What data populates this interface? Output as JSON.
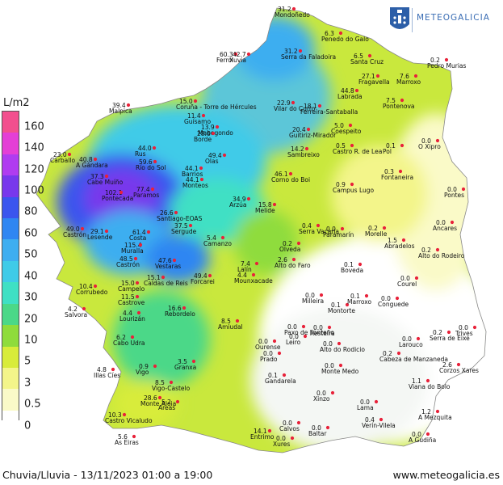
{
  "logo": {
    "text": "METEOGALICIA"
  },
  "legend": {
    "unit": "L/m2",
    "stops": [
      {
        "label": "160",
        "color": "#f24f8e"
      },
      {
        "label": "140",
        "color": "#e43fd6"
      },
      {
        "label": "120",
        "color": "#b03cf0"
      },
      {
        "label": "100",
        "color": "#7838ec"
      },
      {
        "label": "80",
        "color": "#3b55ee"
      },
      {
        "label": "60",
        "color": "#2f86f2"
      },
      {
        "label": "50",
        "color": "#3eaef0"
      },
      {
        "label": "40",
        "color": "#3fcbe8"
      },
      {
        "label": "30",
        "color": "#3fe0c4"
      },
      {
        "label": "20",
        "color": "#4bd888"
      },
      {
        "label": "10",
        "color": "#8fdc3c"
      },
      {
        "label": "5",
        "color": "#d8ec3a"
      },
      {
        "label": "3",
        "color": "#f3f58a"
      },
      {
        "label": "0.5",
        "color": "#fafac8"
      },
      {
        "label": "0",
        "color": "#ffffff"
      }
    ]
  },
  "footer": {
    "caption": "Chuvia/Lluvia - 13/11/2023 01:00 a 19:00",
    "website": "www.meteogalicia.es"
  },
  "stations": [
    {
      "name": "Mondoñedo",
      "value": "31.2"
    },
    {
      "name": "Serra da Faladoira",
      "value": "31.2"
    },
    {
      "name": "Pedro Murias",
      "value": "0.2"
    },
    {
      "name": "Santa Cruz",
      "value": "6.5"
    },
    {
      "name": "Fragavella",
      "value": "27.1"
    },
    {
      "name": "Marroxo",
      "value": "7.6"
    },
    {
      "name": "Labrada",
      "value": "44.8"
    },
    {
      "name": "Pontenova",
      "value": "7.5"
    },
    {
      "name": "Malpica",
      "value": "39.4"
    },
    {
      "name": "Coruña - Torre de Hércules",
      "value": "15.0"
    },
    {
      "name": "Guísamo",
      "value": "11.4"
    },
    {
      "name": "Mabegondo",
      "value": "13.9"
    },
    {
      "name": "Borde",
      "value": "28.6"
    },
    {
      "name": "Ferrol",
      "value": "60.3"
    },
    {
      "name": "Xuvia",
      "value": "42.7"
    },
    {
      "name": "Vilar do Curro",
      "value": "22.9"
    },
    {
      "name": "Penedo do Galo",
      "value": "6.3"
    },
    {
      "name": "Ferreira-Santaballa",
      "value": "18.1"
    },
    {
      "name": "Guitiriz-Mirador",
      "value": "20.4"
    },
    {
      "name": "Coespeito",
      "value": "5.0"
    },
    {
      "name": "Sambreixo",
      "value": "14.2"
    },
    {
      "name": "Castro R. de Lea",
      "value": "0.5"
    },
    {
      "name": "Pol",
      "value": "0.1"
    },
    {
      "name": "O Xipro",
      "value": "0.0"
    },
    {
      "name": "Carballo",
      "value": "23.0"
    },
    {
      "name": "A Gándara",
      "value": "40.8"
    },
    {
      "name": "Rus",
      "value": "44.0"
    },
    {
      "name": "Río do Sol",
      "value": "59.6"
    },
    {
      "name": "Olas",
      "value": "49.4"
    },
    {
      "name": "Barrios",
      "value": "44.1"
    },
    {
      "name": "Monteos",
      "value": "44.1"
    },
    {
      "name": "Cabe Muíño",
      "value": "37.3"
    },
    {
      "name": "Paramos",
      "value": "77.4"
    },
    {
      "name": "Pontecada",
      "value": "102.1"
    },
    {
      "name": "Corno do Boi",
      "value": "46.1"
    },
    {
      "name": "Campus Lugo",
      "value": "0.9"
    },
    {
      "name": "Fontaneira",
      "value": "0.3"
    },
    {
      "name": "Pontes",
      "value": "0.0"
    },
    {
      "name": "Arzúa",
      "value": "34.9"
    },
    {
      "name": "Melide",
      "value": "15.8"
    },
    {
      "name": "Santiago-EOAS",
      "value": "26.6"
    },
    {
      "name": "Sergude",
      "value": "37.5"
    },
    {
      "name": "Camanzo",
      "value": "5.4"
    },
    {
      "name": "Serra Vacaria",
      "value": "0.4"
    },
    {
      "name": "Paramarín",
      "value": "0.0"
    },
    {
      "name": "Morelle",
      "value": "0.2"
    },
    {
      "name": "Ancares",
      "value": "0.0"
    },
    {
      "name": "Abradelos",
      "value": "1.5"
    },
    {
      "name": "Alto do Rodeiro",
      "value": "0.2"
    },
    {
      "name": "Lesende",
      "value": "29.1"
    },
    {
      "name": "Costa",
      "value": "61.4"
    },
    {
      "name": "Muralla",
      "value": "115.4"
    },
    {
      "name": "Castrón",
      "value": "49.0"
    },
    {
      "name": "Castrón",
      "value": "48.5"
    },
    {
      "name": "Vestaras",
      "value": "47.6"
    },
    {
      "name": "Caldas de Reis",
      "value": "15.1"
    },
    {
      "name": "Forcarei",
      "value": "49.4"
    },
    {
      "name": "Lalín",
      "value": "7.4"
    },
    {
      "name": "Mounxacade",
      "value": "4.4"
    },
    {
      "name": "Alto do Faro",
      "value": "2.6"
    },
    {
      "name": "Olveda",
      "value": "0.2"
    },
    {
      "name": "Boveda",
      "value": "0.1"
    },
    {
      "name": "Courel",
      "value": "0.0"
    },
    {
      "name": "Corrubedo",
      "value": "10.4"
    },
    {
      "name": "Salvora",
      "value": "4.2"
    },
    {
      "name": "Campelo",
      "value": "15.0"
    },
    {
      "name": "Castrove",
      "value": "11.5"
    },
    {
      "name": "Lourizán",
      "value": "4.4"
    },
    {
      "name": "Rebordelo",
      "value": "16.6"
    },
    {
      "name": "Amiudal",
      "value": "8.5"
    },
    {
      "name": "Milleira",
      "value": "0.0"
    },
    {
      "name": "Montorte",
      "value": "0.1"
    },
    {
      "name": "Marroxo",
      "value": "0.1"
    },
    {
      "name": "Conguede",
      "value": "0.0"
    },
    {
      "name": "Trives",
      "value": "0.0"
    },
    {
      "name": "Cabo Udra",
      "value": "6.2"
    },
    {
      "name": "Illas Cíes",
      "value": "4.8"
    },
    {
      "name": "Vigo",
      "value": "0.9"
    },
    {
      "name": "Granxa",
      "value": "3.5"
    },
    {
      "name": "Vigo-Castelo",
      "value": "8.5"
    },
    {
      "name": "Monte Aloia",
      "value": "28.6"
    },
    {
      "name": "Areas",
      "value": "5.2"
    },
    {
      "name": "Castro Vicaludo",
      "value": "10.3"
    },
    {
      "name": "As Eiras",
      "value": "5.6"
    },
    {
      "name": "Monte Medo",
      "value": "0.0"
    },
    {
      "name": "Alto do Rodicio",
      "value": "0.0"
    },
    {
      "name": "Cabeza de Manzaneda",
      "value": "0.2"
    },
    {
      "name": "Larouco",
      "value": "0.0"
    },
    {
      "name": "Serra de Eixe",
      "value": "0.2"
    },
    {
      "name": "Corzos Xares",
      "value": "2.6"
    },
    {
      "name": "Viana do Bolo",
      "value": "1.1"
    },
    {
      "name": "A Mezquita",
      "value": "1.2"
    },
    {
      "name": "Gandarela",
      "value": "0.1"
    },
    {
      "name": "Xinzo",
      "value": "0.0"
    },
    {
      "name": "Lama",
      "value": "0.0"
    },
    {
      "name": "Verín-Vilela",
      "value": "0.4"
    },
    {
      "name": "A Gudiña",
      "value": "0.0"
    },
    {
      "name": "Entrimo",
      "value": "14.1"
    },
    {
      "name": "Calvos",
      "value": "0.0"
    },
    {
      "name": "Baltar",
      "value": "0.0"
    },
    {
      "name": "Xures",
      "value": "0.0"
    },
    {
      "name": "Ourense",
      "value": "0.0"
    },
    {
      "name": "Prado",
      "value": "0.0"
    },
    {
      "name": "Paxo de Fonteño",
      "value": "0.0"
    },
    {
      "name": "Xesteira",
      "value": "0.0"
    },
    {
      "name": "Leiro",
      "value": "0.0"
    }
  ]
}
